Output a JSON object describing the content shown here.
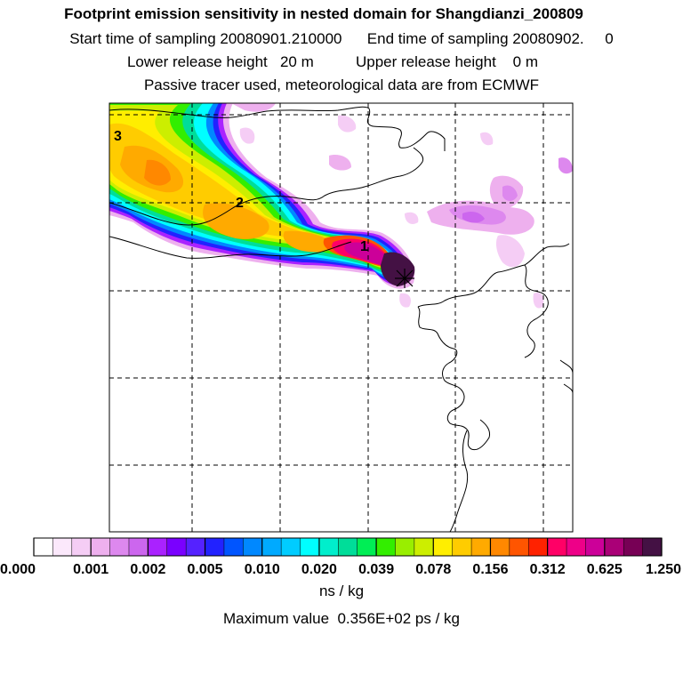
{
  "header": {
    "title": "Footprint emission sensitivity in nested domain for Shangdianzi_200809",
    "sampling_line": "Start time of sampling 20080901.210000      End time of sampling 20080902.     0",
    "release_line": "Lower release height   20 m          Upper release height    0 m",
    "tracer_line": "Passive tracer used, meteorological data are from ECMWF"
  },
  "chart_data": {
    "type": "heatmap",
    "title": "Footprint emission sensitivity in nested domain for Shangdianzi_200809",
    "grid": true,
    "point_labels": [
      "1",
      "2",
      "3"
    ],
    "colorbar": {
      "tick_labels": [
        "0.000",
        "0.001",
        "0.002",
        "0.005",
        "0.010",
        "0.020",
        "0.039",
        "0.078",
        "0.156",
        "0.312",
        "0.625",
        "1.250"
      ],
      "colors": [
        "#ffffff",
        "#fbe8fb",
        "#f5cdf5",
        "#eeb0ee",
        "#dd88ee",
        "#cc66ee",
        "#aa22ff",
        "#7a00ff",
        "#5522ff",
        "#2222ff",
        "#0055ff",
        "#0088ff",
        "#00aaff",
        "#00ccff",
        "#00ffff",
        "#00eecc",
        "#00dd99",
        "#00ee55",
        "#33ee00",
        "#99ee00",
        "#ccee00",
        "#ffee00",
        "#ffcc00",
        "#ffaa00",
        "#ff8800",
        "#ff5500",
        "#ff2200",
        "#ff0066",
        "#ee0088",
        "#cc0099",
        "#aa0077",
        "#770055",
        "#441144"
      ],
      "unit": "ns / kg"
    },
    "maximum_value": "Maximum value  0.356E+02 ps / kg"
  }
}
